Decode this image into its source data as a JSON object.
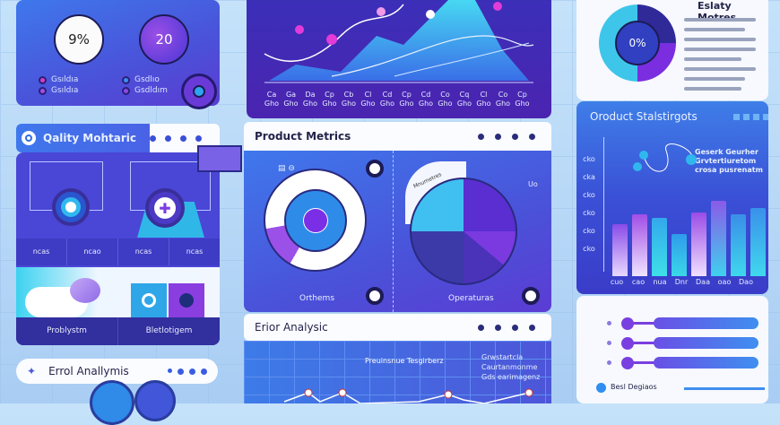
{
  "quality_panel": {
    "left_value": "9%",
    "right_value": "20",
    "legend": [
      "Gsıldıa",
      "Gsıldıa",
      "Gsdlıo",
      "Gsdldım"
    ],
    "title": "Qality Mohtaric"
  },
  "cards": {
    "labels": [
      "ncas",
      "ncao",
      "ncas",
      "ncas"
    ],
    "bottom_labels": [
      "Problystm",
      "Bletlotigem"
    ]
  },
  "error_pill": {
    "title": "Errol Anallymis"
  },
  "top_chart": {
    "x_ticks": [
      "Ca",
      "Ga",
      "Da",
      "Cp",
      "Cb",
      "Cl",
      "Cd",
      "Cp",
      "Cd",
      "Co",
      "Cq",
      "Cl",
      "Co",
      "Cp"
    ],
    "x_ticks_sub": [
      "Gho",
      "Gho",
      "Gho",
      "Gho",
      "Gho",
      "Gho",
      "Gho",
      "Gho",
      "Gho",
      "Gho",
      "Gho",
      "Gho",
      "Gho",
      "Gho"
    ]
  },
  "product_metrics": {
    "title": "Product Metrics",
    "donut_label": "Orthems",
    "pie_label": "Operaturas",
    "pie_tag": "Mnumetres",
    "corner_label": "Uo"
  },
  "error_analysis": {
    "title": "Erior Analysic",
    "chart_title": "Preuinsnue Tesgirberz",
    "notes": [
      "Grwstartcla",
      "Caurtanmonme",
      "Gds earimagenz"
    ]
  },
  "stats_card": {
    "title": "Eslaty Motres",
    "donut_value": "0%"
  },
  "product_statistics": {
    "title": "Oroduct Stalstirgots",
    "note": [
      "Geserk Geurher",
      "Grvtertiuretom",
      "crosa pusrenatm"
    ],
    "y_ticks": [
      "cko",
      "cka",
      "cko",
      "cko",
      "cko",
      "cko"
    ],
    "x_ticks": [
      "cuo",
      "cao",
      "nua",
      "Dnr",
      "Daa",
      "oao",
      "Dao"
    ],
    "bar_levels": [
      0.55,
      0.66,
      0.62,
      0.45,
      0.68,
      0.8,
      0.66,
      0.72
    ]
  },
  "progress_card": {
    "levels": [
      0.78,
      0.78,
      0.78
    ],
    "legend": "Besl Degiaos"
  },
  "colors": {
    "accent_blue": "#3f78ec",
    "accent_purple": "#5b3cd3",
    "cyan": "#2fd0ee",
    "magenta": "#e23bd8"
  }
}
